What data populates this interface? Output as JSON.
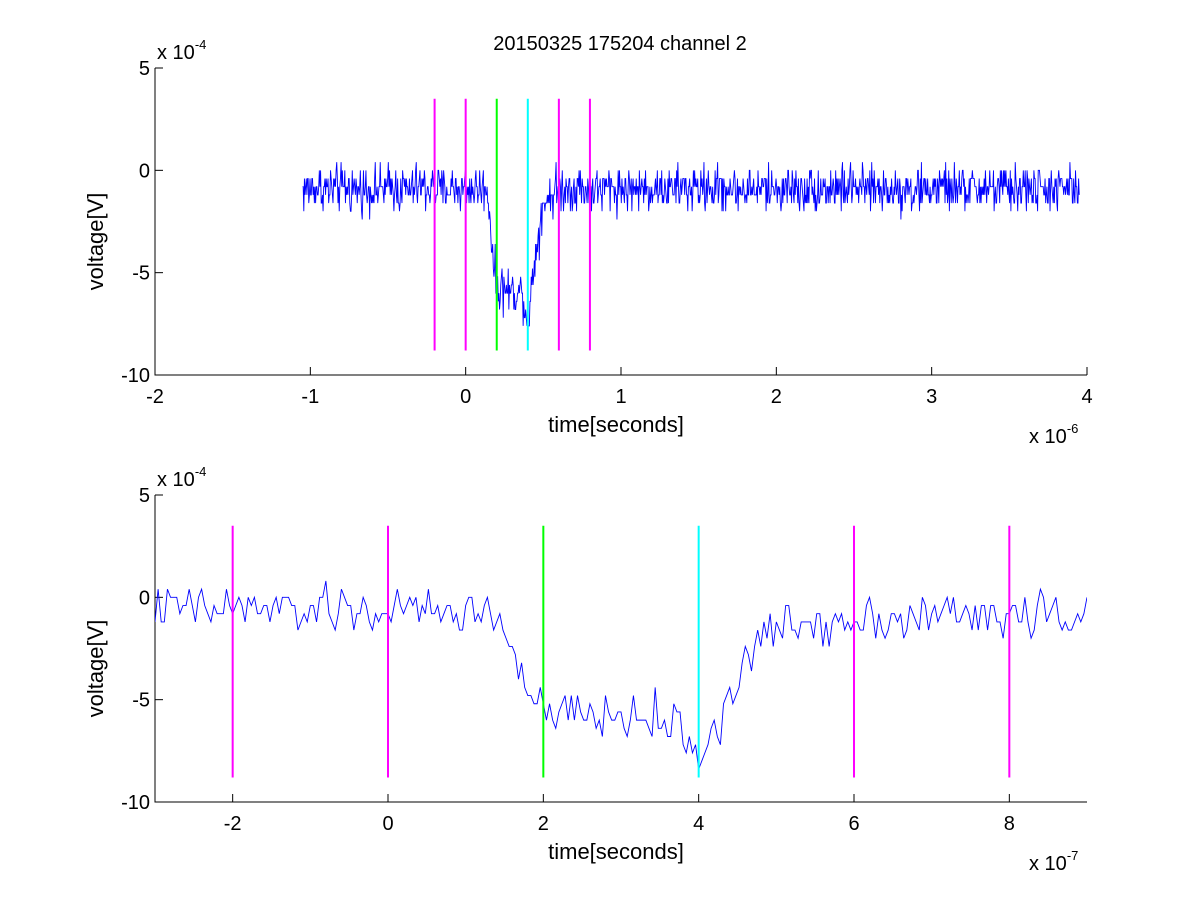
{
  "chart_data": [
    {
      "type": "line",
      "title": "20150325 175204 channel 2",
      "xlabel": "time[seconds]",
      "ylabel": "voltage[V]",
      "x_multiplier": {
        "text": "x 10",
        "power": "-6"
      },
      "y_multiplier": {
        "text": "x 10",
        "power": "-4"
      },
      "xlim": [
        -2e-06,
        4e-06
      ],
      "ylim": [
        -0.001,
        0.0005
      ],
      "x_ticks": [
        -2e-06,
        -1e-06,
        0,
        1e-06,
        2e-06,
        3e-06,
        4e-06
      ],
      "x_tick_labels": [
        "-2",
        "-1",
        "0",
        "1",
        "2",
        "3",
        "4"
      ],
      "y_ticks": [
        -0.001,
        -0.0005,
        0,
        0.0005
      ],
      "y_tick_labels": [
        "-10",
        "-5",
        "0",
        "5"
      ],
      "series": [
        {
          "color": "#0000ff",
          "kind": "noisy-trace",
          "x_start": -1.05e-06,
          "x_end": 3.95e-06,
          "step": 4e-09,
          "quantum": 4e-05,
          "baseline": -9e-05,
          "envelope": [
            [
              -1.05e-06,
              -9e-05
            ],
            [
              1.4e-07,
              -9e-05
            ],
            [
              1.8e-07,
              -0.00045
            ],
            [
              2e-07,
              -0.00057
            ],
            [
              3.7e-07,
              -0.0006
            ],
            [
              4e-07,
              -0.00075
            ],
            [
              4.5e-07,
              -0.0004
            ],
            [
              5e-07,
              -0.00015
            ],
            [
              6e-07,
              -9e-05
            ],
            [
              3.95e-06,
              -9e-05
            ]
          ],
          "noise_amplitude": 0.00011
        }
      ],
      "markers": [
        {
          "x": -2e-07,
          "color": "#ff00ff",
          "y_top": 0.00035,
          "y_bottom": -0.00088
        },
        {
          "x": 0,
          "color": "#ff00ff",
          "y_top": 0.00035,
          "y_bottom": -0.00088
        },
        {
          "x": 2e-07,
          "color": "#00ff00",
          "y_top": 0.00035,
          "y_bottom": -0.00088
        },
        {
          "x": 4e-07,
          "color": "#00ffff",
          "y_top": 0.00035,
          "y_bottom": -0.00088
        },
        {
          "x": 6e-07,
          "color": "#ff00ff",
          "y_top": 0.00035,
          "y_bottom": -0.00088
        },
        {
          "x": 8e-07,
          "color": "#ff00ff",
          "y_top": 0.00035,
          "y_bottom": -0.00088
        }
      ],
      "grid": false
    },
    {
      "type": "line",
      "title": "",
      "xlabel": "time[seconds]",
      "ylabel": "voltage[V]",
      "x_multiplier": {
        "text": "x 10",
        "power": "-7"
      },
      "y_multiplier": {
        "text": "x 10",
        "power": "-4"
      },
      "xlim": [
        -3e-07,
        9e-07
      ],
      "ylim": [
        -0.001,
        0.0005
      ],
      "x_ticks": [
        -2e-07,
        0,
        2e-07,
        4e-07,
        6e-07,
        8e-07
      ],
      "x_tick_labels": [
        "-2",
        "0",
        "2",
        "4",
        "6",
        "8"
      ],
      "y_ticks": [
        -0.001,
        -0.0005,
        0,
        0.0005
      ],
      "y_tick_labels": [
        "-10",
        "-5",
        "0",
        "5"
      ],
      "series": [
        {
          "color": "#0000ff",
          "kind": "noisy-trace",
          "x_start": -3e-07,
          "x_end": 9e-07,
          "step": 4e-09,
          "quantum": 4e-05,
          "baseline": -8e-05,
          "envelope": [
            [
              -3e-07,
              -5e-05
            ],
            [
              1.4e-07,
              -8e-05
            ],
            [
              1.6e-07,
              -0.00025
            ],
            [
              1.85e-07,
              -0.0005
            ],
            [
              2e-07,
              -0.00058
            ],
            [
              3e-07,
              -0.00058
            ],
            [
              3.7e-07,
              -0.00062
            ],
            [
              4e-07,
              -0.00078
            ],
            [
              4.3e-07,
              -0.0006
            ],
            [
              4.6e-07,
              -0.0003
            ],
            [
              5e-07,
              -0.00015
            ],
            [
              6e-07,
              -0.0001
            ],
            [
              9e-07,
              -8e-05
            ]
          ],
          "noise_amplitude": 0.00011
        }
      ],
      "markers": [
        {
          "x": -2e-07,
          "color": "#ff00ff",
          "y_top": 0.00035,
          "y_bottom": -0.00088
        },
        {
          "x": 0,
          "color": "#ff00ff",
          "y_top": 0.00035,
          "y_bottom": -0.00088
        },
        {
          "x": 2e-07,
          "color": "#00ff00",
          "y_top": 0.00035,
          "y_bottom": -0.00088
        },
        {
          "x": 4e-07,
          "color": "#00ffff",
          "y_top": 0.00035,
          "y_bottom": -0.00088
        },
        {
          "x": 6e-07,
          "color": "#ff00ff",
          "y_top": 0.00035,
          "y_bottom": -0.00088
        },
        {
          "x": 8e-07,
          "color": "#ff00ff",
          "y_top": 0.00035,
          "y_bottom": -0.00088
        }
      ],
      "grid": false
    }
  ]
}
